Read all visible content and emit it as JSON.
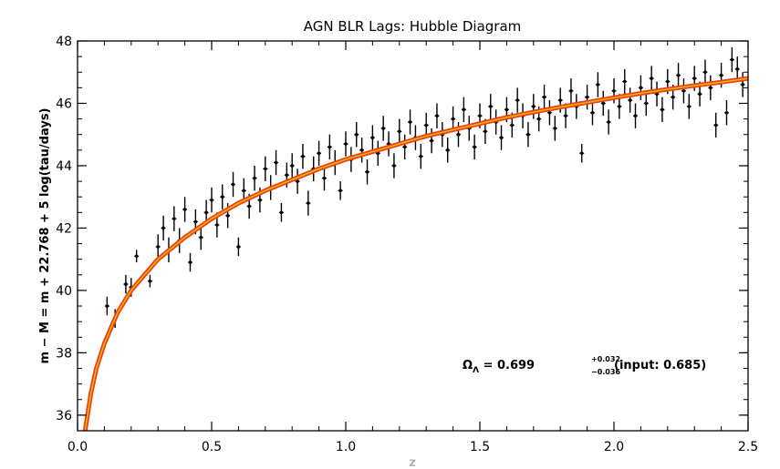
{
  "chart_data": {
    "type": "scatter",
    "title": "AGN BLR Lags: Hubble Diagram",
    "xlabel": "z",
    "ylabel": "m − M = m + 22.768 + 5 log(tau/days)",
    "xlim": [
      0.0,
      2.5
    ],
    "ylim": [
      35.5,
      48.0
    ],
    "x_ticks": [
      0.0,
      0.5,
      1.0,
      1.5,
      2.0,
      2.5
    ],
    "x_tick_labels": [
      "0.0",
      "0.5",
      "1.0",
      "1.5",
      "2.0",
      "2.5"
    ],
    "y_ticks": [
      36,
      38,
      40,
      42,
      44,
      46,
      48
    ],
    "y_tick_labels": [
      "36",
      "38",
      "40",
      "42",
      "44",
      "46",
      "48"
    ],
    "grid": false,
    "legend": "none",
    "colors": {
      "points": "#000000",
      "model_curve_outer": "#e8401c",
      "model_curve_inner": "#f5b800"
    },
    "annotation": {
      "prefix": "Ω",
      "subscript": "Λ",
      "equals": " = 0.699",
      "plus_err": "+0.032",
      "minus_err": "−0.036",
      "suffix": " (input: 0.685)"
    },
    "series": [
      {
        "type": "scatter_with_errorbars",
        "points": [
          [
            0.11,
            39.5,
            0.3
          ],
          [
            0.14,
            39.1,
            0.3
          ],
          [
            0.18,
            40.2,
            0.3
          ],
          [
            0.2,
            40.1,
            0.3
          ],
          [
            0.22,
            41.1,
            0.2
          ],
          [
            0.27,
            40.3,
            0.2
          ],
          [
            0.3,
            41.4,
            0.4
          ],
          [
            0.32,
            42.0,
            0.4
          ],
          [
            0.34,
            41.3,
            0.4
          ],
          [
            0.36,
            42.3,
            0.4
          ],
          [
            0.38,
            41.6,
            0.4
          ],
          [
            0.4,
            42.6,
            0.4
          ],
          [
            0.42,
            40.9,
            0.3
          ],
          [
            0.44,
            42.2,
            0.4
          ],
          [
            0.46,
            41.7,
            0.4
          ],
          [
            0.48,
            42.5,
            0.4
          ],
          [
            0.5,
            42.9,
            0.4
          ],
          [
            0.52,
            42.1,
            0.4
          ],
          [
            0.54,
            43.0,
            0.4
          ],
          [
            0.56,
            42.4,
            0.4
          ],
          [
            0.58,
            43.4,
            0.4
          ],
          [
            0.6,
            41.4,
            0.3
          ],
          [
            0.62,
            43.2,
            0.4
          ],
          [
            0.64,
            42.7,
            0.4
          ],
          [
            0.66,
            43.6,
            0.4
          ],
          [
            0.68,
            42.9,
            0.4
          ],
          [
            0.7,
            43.9,
            0.4
          ],
          [
            0.72,
            43.3,
            0.4
          ],
          [
            0.74,
            44.1,
            0.4
          ],
          [
            0.76,
            42.5,
            0.3
          ],
          [
            0.78,
            43.7,
            0.4
          ],
          [
            0.8,
            44.0,
            0.4
          ],
          [
            0.82,
            43.5,
            0.4
          ],
          [
            0.84,
            44.3,
            0.4
          ],
          [
            0.86,
            42.8,
            0.4
          ],
          [
            0.88,
            43.9,
            0.4
          ],
          [
            0.9,
            44.4,
            0.4
          ],
          [
            0.92,
            43.6,
            0.4
          ],
          [
            0.94,
            44.6,
            0.4
          ],
          [
            0.96,
            44.1,
            0.4
          ],
          [
            0.98,
            43.2,
            0.3
          ],
          [
            1.0,
            44.7,
            0.4
          ],
          [
            1.02,
            44.2,
            0.4
          ],
          [
            1.04,
            45.0,
            0.4
          ],
          [
            1.06,
            44.5,
            0.4
          ],
          [
            1.08,
            43.8,
            0.4
          ],
          [
            1.1,
            44.9,
            0.4
          ],
          [
            1.12,
            44.4,
            0.4
          ],
          [
            1.14,
            45.2,
            0.4
          ],
          [
            1.16,
            44.7,
            0.4
          ],
          [
            1.18,
            44.0,
            0.4
          ],
          [
            1.2,
            45.1,
            0.4
          ],
          [
            1.22,
            44.6,
            0.4
          ],
          [
            1.24,
            45.4,
            0.4
          ],
          [
            1.26,
            44.9,
            0.4
          ],
          [
            1.28,
            44.3,
            0.4
          ],
          [
            1.3,
            45.3,
            0.4
          ],
          [
            1.32,
            44.8,
            0.4
          ],
          [
            1.34,
            45.6,
            0.4
          ],
          [
            1.36,
            45.0,
            0.4
          ],
          [
            1.38,
            44.5,
            0.4
          ],
          [
            1.4,
            45.5,
            0.4
          ],
          [
            1.42,
            45.0,
            0.4
          ],
          [
            1.44,
            45.8,
            0.4
          ],
          [
            1.46,
            45.2,
            0.4
          ],
          [
            1.48,
            44.6,
            0.4
          ],
          [
            1.5,
            45.6,
            0.4
          ],
          [
            1.52,
            45.1,
            0.4
          ],
          [
            1.54,
            45.9,
            0.4
          ],
          [
            1.56,
            45.4,
            0.4
          ],
          [
            1.58,
            44.9,
            0.4
          ],
          [
            1.6,
            45.8,
            0.4
          ],
          [
            1.62,
            45.3,
            0.4
          ],
          [
            1.64,
            46.1,
            0.4
          ],
          [
            1.66,
            45.6,
            0.4
          ],
          [
            1.68,
            45.0,
            0.4
          ],
          [
            1.7,
            45.9,
            0.4
          ],
          [
            1.72,
            45.5,
            0.4
          ],
          [
            1.74,
            46.2,
            0.4
          ],
          [
            1.76,
            45.7,
            0.4
          ],
          [
            1.78,
            45.2,
            0.4
          ],
          [
            1.8,
            46.1,
            0.4
          ],
          [
            1.82,
            45.6,
            0.4
          ],
          [
            1.84,
            46.4,
            0.4
          ],
          [
            1.86,
            45.9,
            0.4
          ],
          [
            1.88,
            44.4,
            0.3
          ],
          [
            1.9,
            46.2,
            0.4
          ],
          [
            1.92,
            45.7,
            0.4
          ],
          [
            1.94,
            46.6,
            0.4
          ],
          [
            1.96,
            46.0,
            0.4
          ],
          [
            1.98,
            45.4,
            0.4
          ],
          [
            2.0,
            46.4,
            0.4
          ],
          [
            2.02,
            45.9,
            0.4
          ],
          [
            2.04,
            46.7,
            0.4
          ],
          [
            2.06,
            46.1,
            0.4
          ],
          [
            2.08,
            45.6,
            0.4
          ],
          [
            2.1,
            46.5,
            0.4
          ],
          [
            2.12,
            46.0,
            0.4
          ],
          [
            2.14,
            46.8,
            0.4
          ],
          [
            2.16,
            46.3,
            0.4
          ],
          [
            2.18,
            45.8,
            0.4
          ],
          [
            2.2,
            46.7,
            0.4
          ],
          [
            2.22,
            46.2,
            0.4
          ],
          [
            2.24,
            46.9,
            0.4
          ],
          [
            2.26,
            46.4,
            0.4
          ],
          [
            2.28,
            45.9,
            0.4
          ],
          [
            2.3,
            46.8,
            0.4
          ],
          [
            2.32,
            46.3,
            0.4
          ],
          [
            2.34,
            47.0,
            0.4
          ],
          [
            2.36,
            46.5,
            0.4
          ],
          [
            2.38,
            45.3,
            0.4
          ],
          [
            2.4,
            46.9,
            0.4
          ],
          [
            2.42,
            45.7,
            0.4
          ],
          [
            2.44,
            47.4,
            0.4
          ],
          [
            2.46,
            47.1,
            0.4
          ],
          [
            2.48,
            46.6,
            0.4
          ]
        ]
      },
      {
        "type": "model_curve",
        "x": [
          0.02,
          0.03,
          0.05,
          0.07,
          0.1,
          0.15,
          0.2,
          0.3,
          0.4,
          0.5,
          0.6,
          0.7,
          0.8,
          0.9,
          1.0,
          1.1,
          1.2,
          1.3,
          1.4,
          1.5,
          1.6,
          1.7,
          1.8,
          1.9,
          2.0,
          2.1,
          2.2,
          2.3,
          2.4,
          2.5
        ],
        "y": [
          34.7,
          35.6,
          36.7,
          37.5,
          38.3,
          39.3,
          40.0,
          41.0,
          41.7,
          42.3,
          42.8,
          43.2,
          43.55,
          43.9,
          44.2,
          44.45,
          44.7,
          44.95,
          45.15,
          45.35,
          45.55,
          45.72,
          45.88,
          46.03,
          46.18,
          46.32,
          46.45,
          46.57,
          46.68,
          46.8
        ]
      }
    ]
  }
}
